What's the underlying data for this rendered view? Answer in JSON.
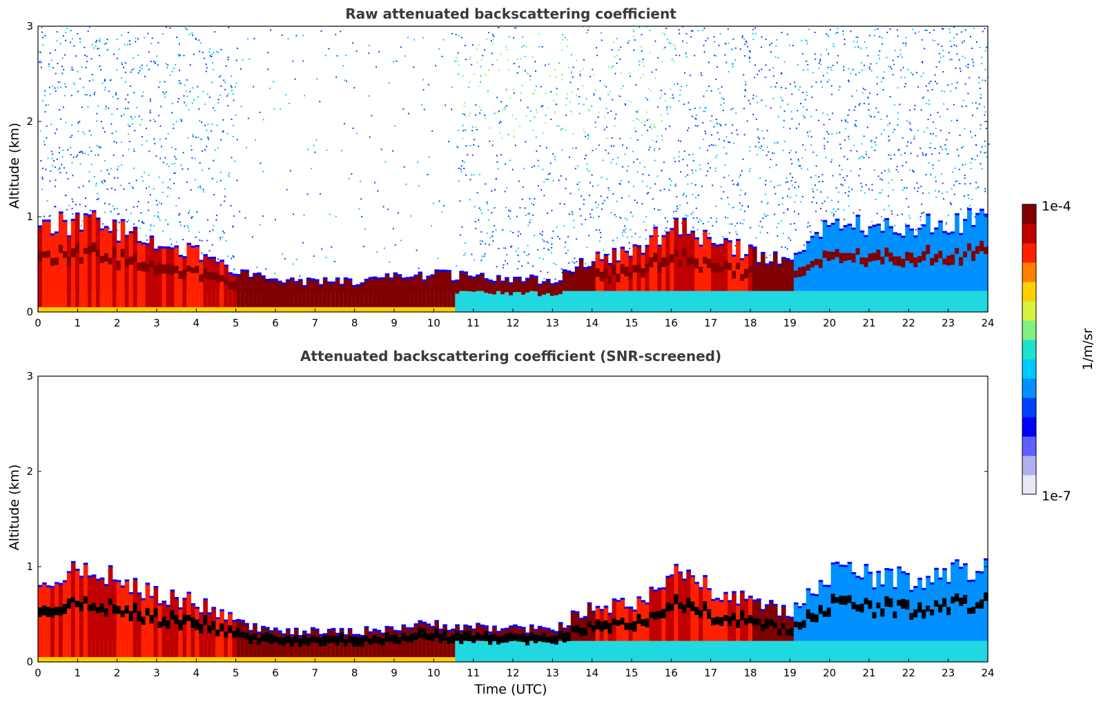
{
  "chart_data": [
    {
      "type": "heatmap",
      "title": "Raw attenuated backscattering coefficient",
      "xlabel": "",
      "ylabel": "Altitude (km)",
      "xlim": [
        0,
        24
      ],
      "ylim": [
        0,
        3
      ],
      "xticks": [
        0,
        1,
        2,
        3,
        4,
        5,
        6,
        7,
        8,
        9,
        10,
        11,
        12,
        13,
        14,
        15,
        16,
        17,
        18,
        19,
        20,
        21,
        22,
        23,
        24
      ],
      "yticks": [
        0,
        1,
        2,
        3
      ],
      "screened": false,
      "boundary_layer_top_km": [
        [
          0,
          0.85
        ],
        [
          1,
          0.95
        ],
        [
          2,
          0.85
        ],
        [
          3,
          0.7
        ],
        [
          4,
          0.6
        ],
        [
          5,
          0.4
        ],
        [
          6,
          0.3
        ],
        [
          7,
          0.3
        ],
        [
          8,
          0.3
        ],
        [
          9,
          0.35
        ],
        [
          10,
          0.38
        ],
        [
          11,
          0.35
        ],
        [
          12,
          0.33
        ],
        [
          13,
          0.32
        ],
        [
          13.6,
          0.5
        ],
        [
          14,
          0.55
        ],
        [
          15,
          0.6
        ],
        [
          16,
          0.9
        ],
        [
          17,
          0.75
        ],
        [
          18,
          0.6
        ],
        [
          19,
          0.5
        ],
        [
          20,
          0.95
        ],
        [
          21,
          0.9
        ],
        [
          22,
          0.85
        ],
        [
          23,
          0.95
        ],
        [
          24,
          0.95
        ]
      ]
    },
    {
      "type": "heatmap",
      "title": "Attenuated backscattering coefficient (SNR-screened)",
      "xlabel": "Time (UTC)",
      "ylabel": "Altitude (km)",
      "xlim": [
        0,
        24
      ],
      "ylim": [
        0,
        3
      ],
      "xticks": [
        0,
        1,
        2,
        3,
        4,
        5,
        6,
        7,
        8,
        9,
        10,
        11,
        12,
        13,
        14,
        15,
        16,
        17,
        18,
        19,
        20,
        21,
        22,
        23,
        24
      ],
      "yticks": [
        0,
        1,
        2,
        3
      ],
      "screened": true,
      "boundary_layer_top_km": [
        [
          0,
          0.85
        ],
        [
          1,
          0.95
        ],
        [
          2,
          0.85
        ],
        [
          3,
          0.7
        ],
        [
          4,
          0.6
        ],
        [
          5,
          0.4
        ],
        [
          6,
          0.3
        ],
        [
          7,
          0.3
        ],
        [
          8,
          0.3
        ],
        [
          9,
          0.35
        ],
        [
          10,
          0.38
        ],
        [
          11,
          0.35
        ],
        [
          12,
          0.33
        ],
        [
          13,
          0.32
        ],
        [
          13.6,
          0.5
        ],
        [
          14,
          0.55
        ],
        [
          15,
          0.6
        ],
        [
          16,
          0.9
        ],
        [
          17,
          0.75
        ],
        [
          18,
          0.6
        ],
        [
          19,
          0.5
        ],
        [
          20,
          0.95
        ],
        [
          21,
          0.9
        ],
        [
          22,
          0.85
        ],
        [
          23,
          0.95
        ],
        [
          24,
          0.95
        ]
      ]
    }
  ],
  "colorbar": {
    "label": "1/m/sr",
    "max_label": "1e-4",
    "min_label": "1e-7",
    "colors": [
      "#e8e8f8",
      "#b0b0f0",
      "#6060ff",
      "#0000ff",
      "#0040ff",
      "#0090ff",
      "#00c8ff",
      "#20e0d0",
      "#80f080",
      "#d8f040",
      "#ffd000",
      "#ff8000",
      "#ff2000",
      "#c00000",
      "#800000"
    ]
  }
}
